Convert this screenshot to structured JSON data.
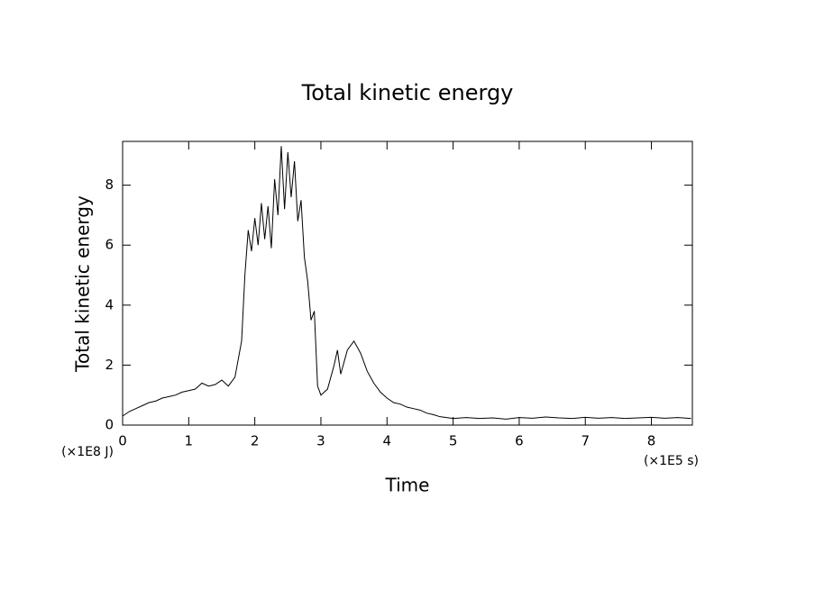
{
  "chart_data": {
    "type": "line",
    "title": "Total kinetic energy",
    "xlabel": "Time",
    "ylabel": "Total kinetic energy",
    "x_unit_label": "(×1E5 s)",
    "y_unit_label": "(×1E8 J)",
    "xlim": [
      0,
      8.62
    ],
    "ylim": [
      0,
      9.46
    ],
    "xticks": [
      0,
      1,
      2,
      3,
      4,
      5,
      6,
      7,
      8
    ],
    "yticks": [
      0,
      2,
      4,
      6,
      8
    ],
    "color": "#000000",
    "x": [
      0,
      0.1,
      0.2,
      0.3,
      0.4,
      0.5,
      0.6,
      0.7,
      0.8,
      0.9,
      1.0,
      1.1,
      1.2,
      1.3,
      1.4,
      1.5,
      1.6,
      1.7,
      1.8,
      1.85,
      1.9,
      1.95,
      2.0,
      2.05,
      2.1,
      2.15,
      2.2,
      2.25,
      2.3,
      2.35,
      2.4,
      2.45,
      2.5,
      2.55,
      2.6,
      2.65,
      2.7,
      2.75,
      2.8,
      2.85,
      2.9,
      2.95,
      3.0,
      3.1,
      3.2,
      3.25,
      3.3,
      3.4,
      3.5,
      3.6,
      3.7,
      3.8,
      3.9,
      4.0,
      4.1,
      4.2,
      4.3,
      4.4,
      4.5,
      4.6,
      4.7,
      4.8,
      4.9,
      5.0,
      5.2,
      5.4,
      5.6,
      5.8,
      6.0,
      6.2,
      6.4,
      6.6,
      6.8,
      7.0,
      7.2,
      7.4,
      7.6,
      7.8,
      8.0,
      8.2,
      8.4,
      8.6
    ],
    "values": [
      0.3,
      0.45,
      0.55,
      0.65,
      0.75,
      0.8,
      0.9,
      0.95,
      1.0,
      1.1,
      1.15,
      1.2,
      1.4,
      1.3,
      1.35,
      1.5,
      1.3,
      1.6,
      2.8,
      5.0,
      6.5,
      5.8,
      6.9,
      6.0,
      7.4,
      6.2,
      7.3,
      5.9,
      8.2,
      7.0,
      9.3,
      7.2,
      9.1,
      7.6,
      8.8,
      6.8,
      7.5,
      5.6,
      4.8,
      3.5,
      3.8,
      1.3,
      1.0,
      1.2,
      2.0,
      2.5,
      1.7,
      2.5,
      2.8,
      2.4,
      1.8,
      1.4,
      1.1,
      0.9,
      0.75,
      0.7,
      0.6,
      0.55,
      0.5,
      0.4,
      0.35,
      0.28,
      0.25,
      0.22,
      0.25,
      0.22,
      0.24,
      0.2,
      0.25,
      0.23,
      0.27,
      0.24,
      0.22,
      0.26,
      0.23,
      0.25,
      0.22,
      0.24,
      0.26,
      0.23,
      0.25,
      0.22
    ]
  }
}
